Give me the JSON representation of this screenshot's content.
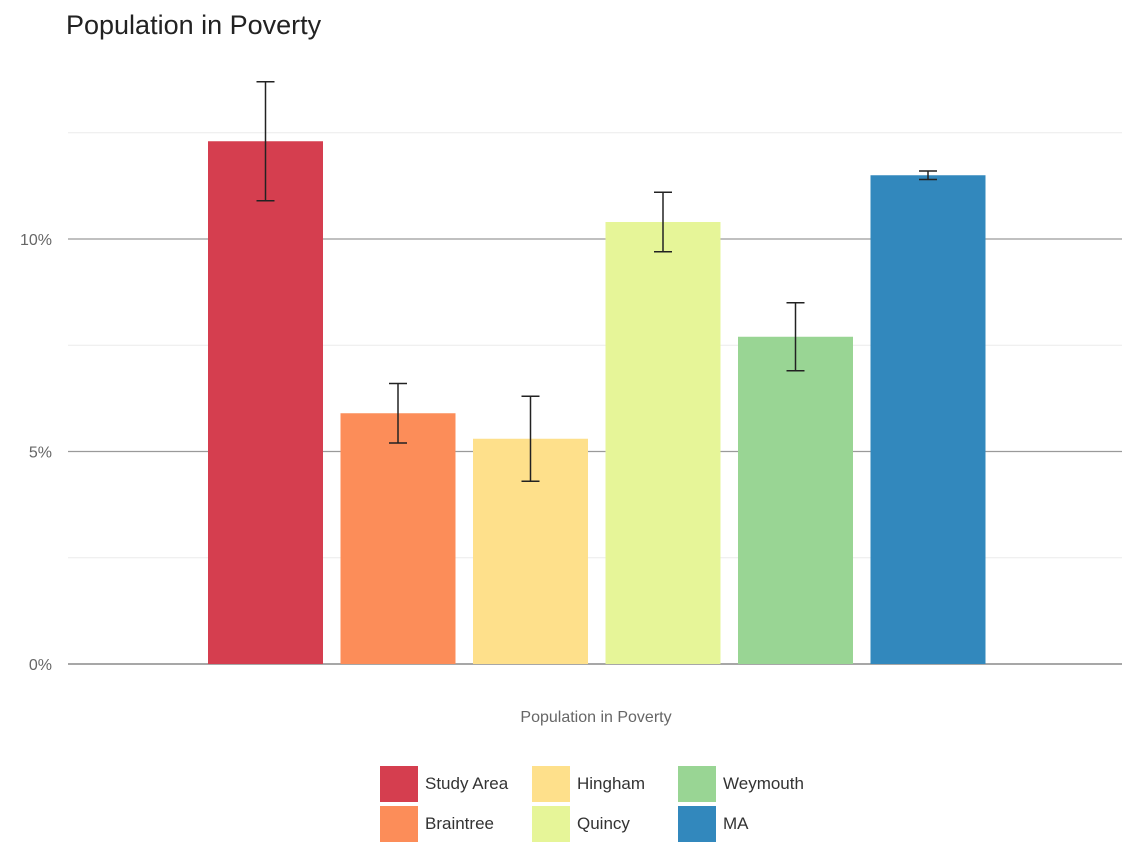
{
  "chart_data": {
    "type": "bar",
    "title": "Population in Poverty",
    "xlabel": "Population in Poverty",
    "ylabel": "",
    "ylim": [
      0,
      14.5
    ],
    "yticks": [
      0,
      5,
      10
    ],
    "ytick_labels": [
      "0%",
      "5%",
      "10%"
    ],
    "grid": true,
    "legend_position": "bottom",
    "categories": [
      "Study Area",
      "Braintree",
      "Hingham",
      "Quincy",
      "Weymouth",
      "MA"
    ],
    "values": [
      12.3,
      5.9,
      5.3,
      10.4,
      7.7,
      11.5
    ],
    "error_low": [
      10.9,
      5.2,
      4.3,
      9.7,
      6.9,
      11.4
    ],
    "error_high": [
      13.7,
      6.6,
      6.3,
      11.1,
      8.5,
      11.6
    ],
    "colors": [
      "#d53e4f",
      "#fc8d59",
      "#fee08b",
      "#e6f598",
      "#99d594",
      "#3288bd"
    ]
  }
}
